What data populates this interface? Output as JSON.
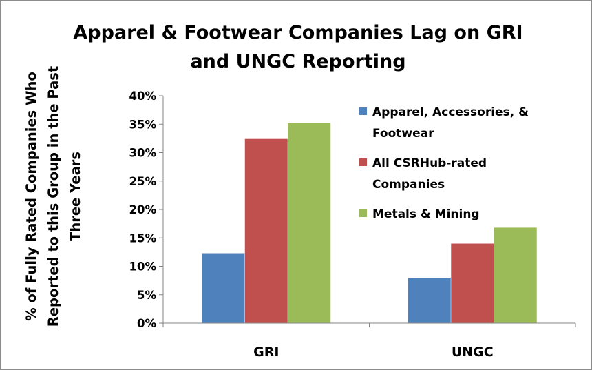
{
  "chart_data": {
    "type": "bar",
    "title_lines": [
      "Apparel & Footwear Companies Lag on GRI",
      "and UNGC Reporting"
    ],
    "ylabel_lines": [
      "% of Fully Rated Companies Who",
      "Reported to this Group in the Past",
      "Three Years"
    ],
    "xlabel": "",
    "categories": [
      "GRI",
      "UNGC"
    ],
    "series": [
      {
        "name": "Apparel, Accessories, & Footwear",
        "legend_lines": [
          "Apparel, Accessories, &",
          "Footwear"
        ],
        "values": [
          12.3,
          8.0
        ],
        "color": "#4f81bd"
      },
      {
        "name": "All CSRHub-rated Companies",
        "legend_lines": [
          "All CSRHub-rated",
          "Companies"
        ],
        "values": [
          32.4,
          14.0
        ],
        "color": "#c0504d"
      },
      {
        "name": "Metals & Mining",
        "legend_lines": [
          "Metals & Mining"
        ],
        "values": [
          35.2,
          16.8
        ],
        "color": "#9bbb59"
      }
    ],
    "ylim": [
      0,
      40
    ],
    "yticks": [
      0,
      5,
      10,
      15,
      20,
      25,
      30,
      35,
      40
    ],
    "ytick_labels": [
      "0%",
      "5%",
      "10%",
      "15%",
      "20%",
      "25%",
      "30%",
      "35%",
      "40%"
    ],
    "grid": false,
    "legend_position": "top-right"
  }
}
